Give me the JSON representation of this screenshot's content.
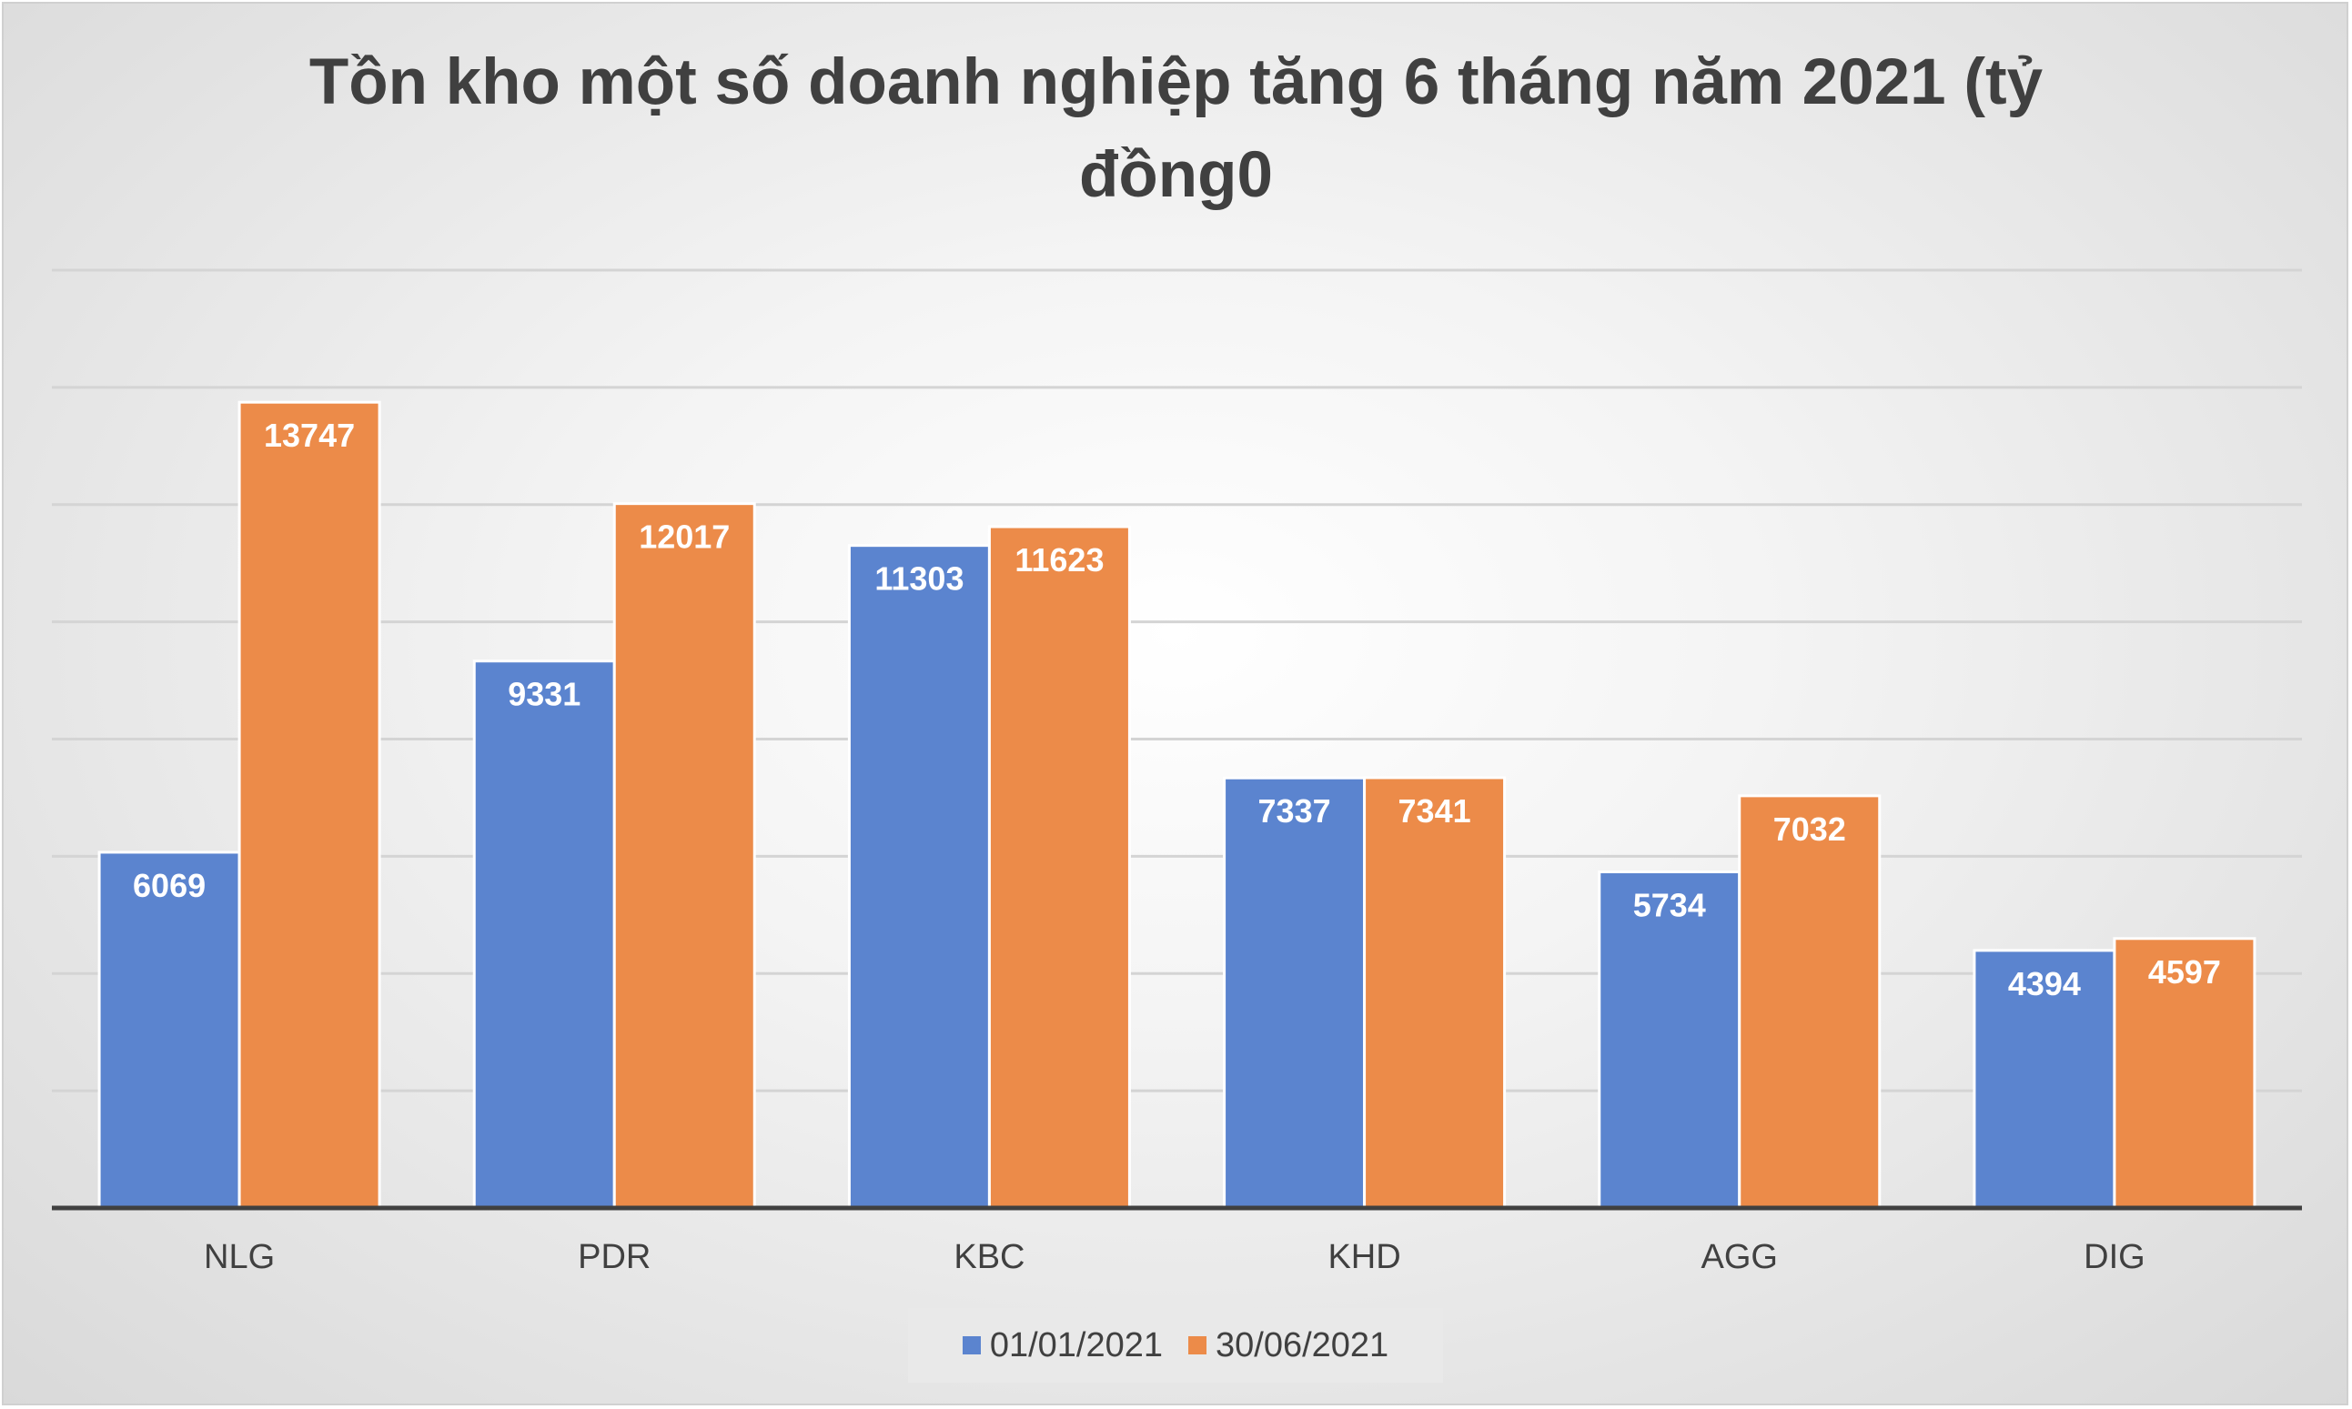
{
  "chart_data": {
    "type": "bar",
    "title_lines": [
      "Tồn kho một số doanh nghiệp tăng 6 tháng năm 2021 (tỷ",
      "đồng0"
    ],
    "xlabel": "",
    "ylabel": "",
    "ylim": [
      0,
      16000
    ],
    "y_grid_step": 2000,
    "grid": true,
    "y_tick_labels_visible": false,
    "legend_position": "bottom",
    "data_labels": true,
    "categories": [
      "NLG",
      "PDR",
      "KBC",
      "KHD",
      "AGG",
      "DIG"
    ],
    "series": [
      {
        "name": "01/01/2021",
        "color": "#5b84cf",
        "values": [
          6069,
          9331,
          11303,
          7337,
          5734,
          4394
        ]
      },
      {
        "name": "30/06/2021",
        "color": "#ec8b49",
        "values": [
          13747,
          12017,
          11623,
          7341,
          7032,
          4597
        ]
      }
    ]
  }
}
